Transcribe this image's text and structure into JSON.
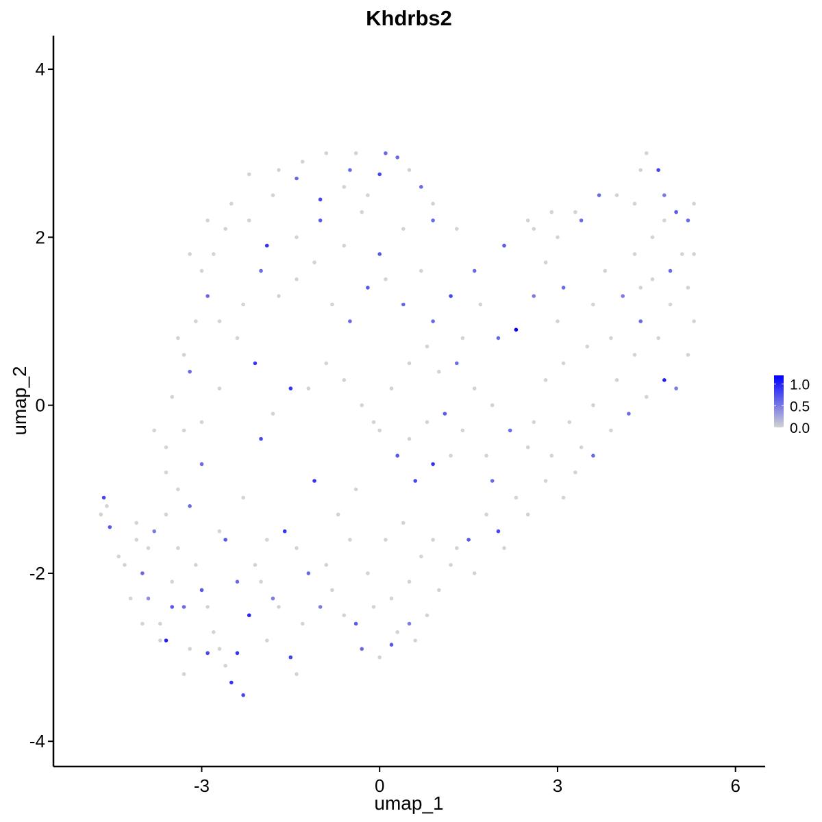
{
  "chart_data": {
    "type": "scatter",
    "title": "Khdrbs2",
    "xlabel": "umap_1",
    "ylabel": "umap_2",
    "xlim": [
      -5.5,
      6.5
    ],
    "ylim": [
      -4.3,
      4.4
    ],
    "x_ticks": [
      -3,
      0,
      3,
      6
    ],
    "x_tick_labels": [
      "-3",
      "0",
      "3",
      "6"
    ],
    "y_ticks": [
      -4,
      -2,
      0,
      2,
      4
    ],
    "y_tick_labels": [
      "-4",
      "-2",
      "0",
      "2",
      "4"
    ],
    "grid": false,
    "legend": {
      "placement": "right",
      "type": "colorbar",
      "min": 0.0,
      "max": 1.2,
      "ticks": [
        0.0,
        0.5,
        1.0
      ],
      "tick_labels": [
        "0.0",
        "0.5",
        "1.0"
      ]
    },
    "colors": {
      "low": "#d3d3d3",
      "high": "#0000ff"
    },
    "points": [
      [
        -4.7,
        -1.3,
        0
      ],
      [
        -4.6,
        -1.2,
        0
      ],
      [
        -4.65,
        -1.1,
        0.8
      ],
      [
        -4.55,
        -1.45,
        0.7
      ],
      [
        -4.4,
        -1.8,
        0
      ],
      [
        -4.1,
        -1.4,
        0
      ],
      [
        -4.0,
        -2.0,
        0.6
      ],
      [
        -3.9,
        -2.3,
        0.4
      ],
      [
        -3.8,
        -1.5,
        0.5
      ],
      [
        -3.7,
        -2.6,
        0
      ],
      [
        -3.6,
        -2.8,
        1.0
      ],
      [
        -3.5,
        -2.1,
        0
      ],
      [
        -3.4,
        -1.7,
        0
      ],
      [
        -3.3,
        -2.4,
        0.6
      ],
      [
        -3.2,
        -2.9,
        0
      ],
      [
        -3.1,
        -1.9,
        0
      ],
      [
        -3.0,
        -2.2,
        0.7
      ],
      [
        -2.9,
        -2.95,
        0.8
      ],
      [
        -2.8,
        -2.7,
        0
      ],
      [
        -2.7,
        -1.5,
        0
      ],
      [
        -2.6,
        -3.1,
        0
      ],
      [
        -2.5,
        -3.3,
        0.9
      ],
      [
        -2.4,
        -2.95,
        0.9
      ],
      [
        -2.3,
        -3.45,
        0.8
      ],
      [
        -2.2,
        -2.5,
        1.0
      ],
      [
        -2.0,
        -2.1,
        0
      ],
      [
        -1.9,
        -2.8,
        0
      ],
      [
        -1.8,
        -2.3,
        0.5
      ],
      [
        -1.5,
        -3.0,
        0.8
      ],
      [
        -1.4,
        -3.2,
        0
      ],
      [
        -1.3,
        -2.6,
        0
      ],
      [
        -1.2,
        -2.0,
        0.6
      ],
      [
        -1.0,
        -2.4,
        0.5
      ],
      [
        -0.8,
        -2.2,
        0
      ],
      [
        -0.6,
        -2.5,
        0
      ],
      [
        -0.4,
        -2.6,
        0.7
      ],
      [
        -0.3,
        -2.9,
        0.6
      ],
      [
        -0.1,
        -2.4,
        0
      ],
      [
        0.0,
        -3.0,
        0
      ],
      [
        0.2,
        -2.85,
        0.7
      ],
      [
        0.3,
        -2.7,
        0
      ],
      [
        0.5,
        -2.6,
        0.5
      ],
      [
        0.6,
        -2.8,
        0
      ],
      [
        0.8,
        -2.5,
        0
      ],
      [
        1.0,
        -2.2,
        0
      ],
      [
        1.2,
        -1.9,
        0
      ],
      [
        1.5,
        -1.6,
        0.7
      ],
      [
        1.8,
        -1.3,
        0
      ],
      [
        2.0,
        -1.5,
        0.8
      ],
      [
        2.3,
        -1.1,
        0
      ],
      [
        2.5,
        -1.3,
        0
      ],
      [
        2.8,
        -0.9,
        0
      ],
      [
        3.1,
        -1.1,
        0
      ],
      [
        3.3,
        -0.8,
        0
      ],
      [
        3.6,
        -0.6,
        0.6
      ],
      [
        3.9,
        -0.3,
        0
      ],
      [
        4.2,
        -0.1,
        0.6
      ],
      [
        4.5,
        0.1,
        0
      ],
      [
        4.8,
        0.3,
        1.0
      ],
      [
        5.0,
        0.2,
        0.5
      ],
      [
        5.2,
        0.6,
        0
      ],
      [
        5.3,
        1.0,
        0
      ],
      [
        5.2,
        1.4,
        0
      ],
      [
        5.3,
        1.8,
        0
      ],
      [
        5.2,
        2.2,
        0.6
      ],
      [
        5.3,
        2.4,
        0
      ],
      [
        5.0,
        2.3,
        0.7
      ],
      [
        4.8,
        2.5,
        0.5
      ],
      [
        4.7,
        2.8,
        0.8
      ],
      [
        4.5,
        3.0,
        0
      ],
      [
        4.4,
        2.8,
        0
      ],
      [
        4.3,
        2.4,
        0
      ],
      [
        4.0,
        2.5,
        0
      ],
      [
        3.7,
        2.5,
        0.6
      ],
      [
        3.4,
        2.2,
        0.6
      ],
      [
        3.0,
        2.0,
        0
      ],
      [
        2.6,
        2.1,
        0
      ],
      [
        2.1,
        1.9,
        0.7
      ],
      [
        1.6,
        1.6,
        0.6
      ],
      [
        1.2,
        1.3,
        0.8
      ],
      [
        0.9,
        1.0,
        0.6
      ],
      [
        2.3,
        0.9,
        1.2
      ],
      [
        2.0,
        0.8,
        0.6
      ],
      [
        2.6,
        1.3,
        0.5
      ],
      [
        3.1,
        1.4,
        0.6
      ],
      [
        3.6,
        1.2,
        0
      ],
      [
        4.1,
        1.3,
        0.5
      ],
      [
        4.4,
        1.0,
        0.6
      ],
      [
        4.6,
        1.5,
        0
      ],
      [
        4.9,
        1.6,
        0.6
      ],
      [
        1.0,
        0.4,
        0
      ],
      [
        1.3,
        0.5,
        0.6
      ],
      [
        1.6,
        0.2,
        0
      ],
      [
        1.9,
        0.0,
        0
      ],
      [
        2.2,
        -0.3,
        0.6
      ],
      [
        2.5,
        -0.5,
        0
      ],
      [
        1.2,
        -0.6,
        0
      ],
      [
        0.9,
        -0.7,
        0.9
      ],
      [
        0.6,
        -0.9,
        0.8
      ],
      [
        0.3,
        -0.6,
        0.7
      ],
      [
        0.0,
        -0.3,
        0
      ],
      [
        -0.3,
        0.0,
        0
      ],
      [
        -0.6,
        0.3,
        0
      ],
      [
        -0.9,
        0.5,
        0
      ],
      [
        -1.2,
        0.2,
        0
      ],
      [
        -1.5,
        0.2,
        0.9
      ],
      [
        -1.8,
        -0.1,
        0
      ],
      [
        -2.1,
        0.5,
        0.9
      ],
      [
        -2.4,
        0.8,
        0
      ],
      [
        -2.7,
        0.2,
        0
      ],
      [
        -3.0,
        -0.7,
        0.6
      ],
      [
        -3.3,
        -0.3,
        0
      ],
      [
        -3.6,
        -0.5,
        0
      ],
      [
        -2.0,
        -0.4,
        0.8
      ],
      [
        -1.1,
        -0.9,
        0.9
      ],
      [
        -0.7,
        -1.3,
        0
      ],
      [
        -0.4,
        -1.0,
        0
      ],
      [
        0.1,
        -1.6,
        0
      ],
      [
        0.4,
        -1.4,
        0
      ],
      [
        0.7,
        -1.8,
        0
      ],
      [
        -1.6,
        -1.5,
        0.9
      ],
      [
        -2.3,
        -1.1,
        0
      ],
      [
        -2.6,
        -1.6,
        0.7
      ],
      [
        -3.2,
        -1.2,
        0.6
      ],
      [
        -3.5,
        -2.4,
        0.7
      ],
      [
        -2.9,
        -2.4,
        0
      ],
      [
        -2.1,
        -1.9,
        0
      ],
      [
        -1.9,
        -1.6,
        0
      ],
      [
        -1.4,
        -1.7,
        0
      ],
      [
        -0.9,
        -1.9,
        0
      ],
      [
        -2.4,
        -2.1,
        0.6
      ],
      [
        -3.0,
        -0.2,
        0
      ],
      [
        -3.2,
        0.4,
        0.6
      ],
      [
        -3.4,
        0.8,
        0
      ],
      [
        -2.9,
        1.3,
        0.6
      ],
      [
        -2.7,
        1.0,
        0
      ],
      [
        -2.3,
        1.2,
        0
      ],
      [
        -2.0,
        1.6,
        0.6
      ],
      [
        -1.7,
        1.3,
        0
      ],
      [
        -1.4,
        1.5,
        0
      ],
      [
        -1.1,
        1.7,
        0
      ],
      [
        -0.8,
        1.2,
        0
      ],
      [
        -0.5,
        1.0,
        0.6
      ],
      [
        -0.2,
        1.4,
        0.7
      ],
      [
        0.1,
        1.5,
        0
      ],
      [
        0.4,
        1.2,
        0.6
      ],
      [
        0.7,
        1.6,
        0
      ],
      [
        0.0,
        1.8,
        0.7
      ],
      [
        -0.6,
        1.9,
        0
      ],
      [
        -1.0,
        2.2,
        0.7
      ],
      [
        -1.4,
        2.0,
        0
      ],
      [
        -1.9,
        1.9,
        0.9
      ],
      [
        -2.2,
        2.2,
        0
      ],
      [
        -2.5,
        2.4,
        0
      ],
      [
        -2.2,
        2.75,
        0
      ],
      [
        -1.8,
        2.5,
        0
      ],
      [
        -1.4,
        2.7,
        0.6
      ],
      [
        -1.0,
        2.45,
        0.8
      ],
      [
        -0.6,
        2.6,
        0
      ],
      [
        -0.5,
        2.8,
        0.6
      ],
      [
        -0.2,
        2.5,
        0
      ],
      [
        0.0,
        2.75,
        0.8
      ],
      [
        0.1,
        3.0,
        0.6
      ],
      [
        0.3,
        2.95,
        0.6
      ],
      [
        0.5,
        2.8,
        0
      ],
      [
        0.7,
        2.6,
        0.6
      ],
      [
        0.9,
        2.4,
        0
      ],
      [
        0.9,
        2.2,
        0.6
      ],
      [
        0.4,
        2.1,
        0
      ],
      [
        -0.3,
        2.3,
        0
      ],
      [
        -1.3,
        2.9,
        0
      ],
      [
        -0.9,
        3.0,
        0
      ],
      [
        -0.4,
        3.0,
        0
      ],
      [
        -1.7,
        2.8,
        0
      ],
      [
        1.3,
        2.1,
        0
      ],
      [
        1.7,
        1.2,
        0
      ],
      [
        1.4,
        0.8,
        0
      ],
      [
        0.8,
        0.7,
        0
      ],
      [
        0.5,
        0.5,
        0
      ],
      [
        0.2,
        0.2,
        0
      ],
      [
        -0.1,
        -0.2,
        0
      ],
      [
        0.5,
        -0.4,
        0
      ],
      [
        0.8,
        -0.2,
        0
      ],
      [
        1.1,
        -0.1,
        0.7
      ],
      [
        1.4,
        -0.3,
        0
      ],
      [
        1.8,
        -0.6,
        0
      ],
      [
        1.9,
        -0.9,
        0.6
      ],
      [
        2.1,
        -1.7,
        0
      ],
      [
        1.6,
        -2.0,
        0
      ],
      [
        1.3,
        -1.7,
        0
      ],
      [
        0.9,
        -1.6,
        0
      ],
      [
        0.5,
        -2.1,
        0
      ],
      [
        0.2,
        -2.3,
        0
      ],
      [
        -0.2,
        -2.0,
        0
      ],
      [
        -0.5,
        -1.6,
        0
      ],
      [
        -1.7,
        -2.4,
        0
      ],
      [
        -2.7,
        -2.9,
        0
      ],
      [
        -3.3,
        -3.2,
        0
      ],
      [
        -3.7,
        -2.8,
        0
      ],
      [
        -4.0,
        -2.6,
        0
      ],
      [
        -4.2,
        -2.3,
        0
      ],
      [
        -4.3,
        -1.9,
        0
      ],
      [
        -3.9,
        -1.7,
        0
      ],
      [
        -4.1,
        -1.6,
        0
      ],
      [
        -3.6,
        -1.3,
        0
      ],
      [
        -3.4,
        -1.0,
        0
      ],
      [
        -3.6,
        -0.8,
        0
      ],
      [
        -3.8,
        -0.3,
        0
      ],
      [
        -3.5,
        0.1,
        0
      ],
      [
        -3.3,
        0.6,
        0
      ],
      [
        -3.1,
        1.0,
        0
      ],
      [
        -3.0,
        1.6,
        0
      ],
      [
        -3.2,
        1.8,
        0
      ],
      [
        -2.8,
        1.8,
        0
      ],
      [
        -2.6,
        2.1,
        0
      ],
      [
        -2.9,
        2.2,
        0
      ],
      [
        3.3,
        2.3,
        0
      ],
      [
        2.9,
        2.3,
        0
      ],
      [
        2.5,
        2.2,
        0
      ],
      [
        2.8,
        1.7,
        0
      ],
      [
        3.8,
        1.6,
        0
      ],
      [
        4.3,
        1.8,
        0
      ],
      [
        4.6,
        2.0,
        0
      ],
      [
        4.8,
        2.2,
        0
      ],
      [
        5.1,
        1.8,
        0
      ],
      [
        4.9,
        1.2,
        0
      ],
      [
        4.7,
        0.8,
        0
      ],
      [
        4.3,
        0.6,
        0
      ],
      [
        3.9,
        0.8,
        0
      ],
      [
        3.5,
        0.7,
        0
      ],
      [
        3.1,
        0.5,
        0
      ],
      [
        2.8,
        0.3,
        0
      ],
      [
        3.2,
        -0.2,
        0
      ],
      [
        3.6,
        0.0,
        0
      ],
      [
        4.0,
        0.3,
        0
      ],
      [
        3.4,
        -0.5,
        0
      ],
      [
        2.9,
        -0.6,
        0
      ],
      [
        2.6,
        -0.2,
        0
      ],
      [
        3.0,
        1.0,
        0
      ],
      [
        4.4,
        1.4,
        0
      ]
    ]
  }
}
